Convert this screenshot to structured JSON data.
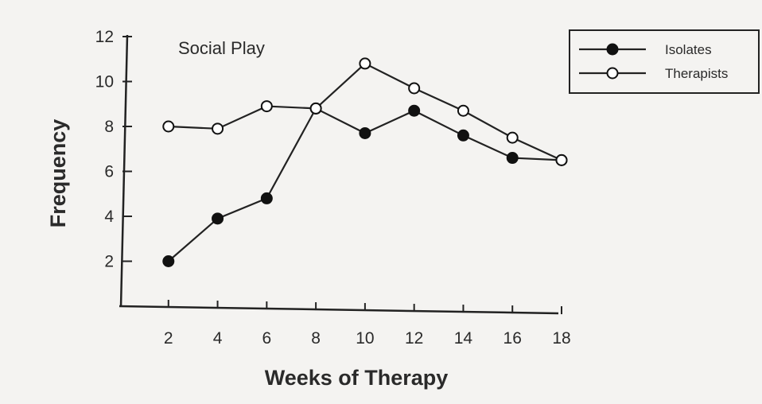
{
  "chart_data": {
    "type": "line",
    "title": "Social Play",
    "xlabel": "Weeks of Therapy",
    "ylabel": "Frequency",
    "xlim": [
      0,
      18
    ],
    "ylim": [
      0,
      12
    ],
    "x_ticks": [
      2,
      4,
      6,
      8,
      10,
      12,
      14,
      16,
      18
    ],
    "y_ticks": [
      2,
      4,
      6,
      8,
      10,
      12
    ],
    "grid": false,
    "legend_position": "top-right",
    "series": [
      {
        "name": "Isolates",
        "marker": "filled-circle",
        "color": "#111111",
        "x": [
          2,
          4,
          6,
          8,
          10,
          12,
          14,
          16,
          18
        ],
        "y": [
          2,
          3.9,
          4.8,
          8.8,
          7.7,
          8.7,
          7.6,
          6.6,
          6.5
        ]
      },
      {
        "name": "Therapists",
        "marker": "open-circle",
        "color": "#111111",
        "x": [
          2,
          4,
          6,
          8,
          10,
          12,
          14,
          16,
          18
        ],
        "y": [
          8,
          7.9,
          8.9,
          8.8,
          10.8,
          9.7,
          8.7,
          7.5,
          6.5
        ]
      }
    ]
  }
}
